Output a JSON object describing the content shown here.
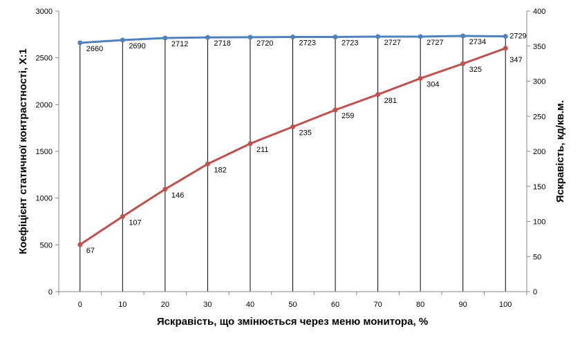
{
  "chart_data": {
    "type": "line",
    "x": [
      0,
      10,
      20,
      30,
      40,
      50,
      60,
      70,
      80,
      90,
      100
    ],
    "xlabel": "Яскравість, що змінюється через меню монитора, %",
    "ylabel_left": "Коефіцієнт статичної контрастності, Х:1",
    "ylabel_right": "Яскравість, кд/кв.м.",
    "ylim_left": [
      0,
      3000
    ],
    "ylim_right": [
      0,
      400
    ],
    "yticks_left": [
      0,
      500,
      1000,
      1500,
      2000,
      2500,
      3000
    ],
    "yticks_right": [
      0,
      50,
      100,
      150,
      200,
      250,
      300,
      350,
      400
    ],
    "grid": "vertical lines at each x",
    "legend": "none",
    "series": [
      {
        "axis": "left",
        "color": "#4f81bd",
        "values": [
          2660,
          2690,
          2712,
          2718,
          2720,
          2723,
          2723,
          2727,
          2727,
          2734,
          2729
        ]
      },
      {
        "axis": "right",
        "color": "#c0504d",
        "values": [
          67,
          107,
          146,
          182,
          211,
          235,
          259,
          281,
          304,
          325,
          347
        ]
      }
    ]
  }
}
